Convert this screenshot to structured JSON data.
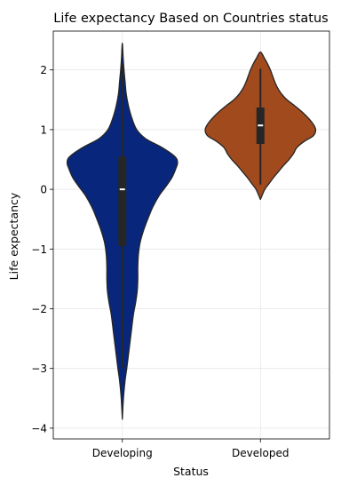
{
  "chart_data": {
    "type": "violin",
    "title": "Life expectancy Based on Countries status",
    "xlabel": "Status",
    "ylabel": "Life expectancy",
    "ylim": [
      -4.18,
      2.65
    ],
    "yticks": [
      -4,
      -3,
      -2,
      -1,
      0,
      1,
      2
    ],
    "ytick_labels": [
      "−4",
      "−3",
      "−2",
      "−1",
      "0",
      "1",
      "2"
    ],
    "grid": true,
    "categories": [
      "Developing",
      "Developed"
    ],
    "series": [
      {
        "category": "Developing",
        "color": "#08267b",
        "median": 0.0,
        "q1": -0.95,
        "q3": 0.55,
        "whisker_low": -3.0,
        "whisker_high": 2.1,
        "min": -3.85,
        "max": 2.45,
        "density": [
          [
            -3.85,
            0.0
          ],
          [
            -3.5,
            0.02
          ],
          [
            -3.2,
            0.05
          ],
          [
            -3.0,
            0.08
          ],
          [
            -2.7,
            0.12
          ],
          [
            -2.4,
            0.16
          ],
          [
            -2.1,
            0.2
          ],
          [
            -1.9,
            0.24
          ],
          [
            -1.7,
            0.27
          ],
          [
            -1.5,
            0.28
          ],
          [
            -1.3,
            0.28
          ],
          [
            -1.1,
            0.29
          ],
          [
            -0.9,
            0.32
          ],
          [
            -0.7,
            0.38
          ],
          [
            -0.5,
            0.46
          ],
          [
            -0.3,
            0.55
          ],
          [
            -0.1,
            0.67
          ],
          [
            0.05,
            0.79
          ],
          [
            0.2,
            0.9
          ],
          [
            0.35,
            0.97
          ],
          [
            0.45,
            1.0
          ],
          [
            0.55,
            0.95
          ],
          [
            0.7,
            0.72
          ],
          [
            0.85,
            0.42
          ],
          [
            1.0,
            0.26
          ],
          [
            1.2,
            0.17
          ],
          [
            1.4,
            0.11
          ],
          [
            1.6,
            0.07
          ],
          [
            1.8,
            0.05
          ],
          [
            2.0,
            0.03
          ],
          [
            2.2,
            0.015
          ],
          [
            2.45,
            0.0
          ]
        ]
      },
      {
        "category": "Developed",
        "color": "#a04a1e",
        "median": 1.07,
        "q1": 0.76,
        "q3": 1.37,
        "whisker_low": 0.08,
        "whisker_high": 2.02,
        "min": -0.17,
        "max": 2.3,
        "density": [
          [
            -0.17,
            0.0
          ],
          [
            0.0,
            0.08
          ],
          [
            0.1,
            0.16
          ],
          [
            0.2,
            0.24
          ],
          [
            0.3,
            0.33
          ],
          [
            0.4,
            0.42
          ],
          [
            0.5,
            0.52
          ],
          [
            0.6,
            0.6
          ],
          [
            0.7,
            0.66
          ],
          [
            0.8,
            0.79
          ],
          [
            0.9,
            0.96
          ],
          [
            1.0,
            1.0
          ],
          [
            1.1,
            0.95
          ],
          [
            1.2,
            0.86
          ],
          [
            1.3,
            0.75
          ],
          [
            1.4,
            0.62
          ],
          [
            1.5,
            0.48
          ],
          [
            1.6,
            0.38
          ],
          [
            1.7,
            0.31
          ],
          [
            1.8,
            0.26
          ],
          [
            1.9,
            0.22
          ],
          [
            2.0,
            0.18
          ],
          [
            2.1,
            0.13
          ],
          [
            2.2,
            0.07
          ],
          [
            2.3,
            0.0
          ]
        ]
      }
    ]
  }
}
